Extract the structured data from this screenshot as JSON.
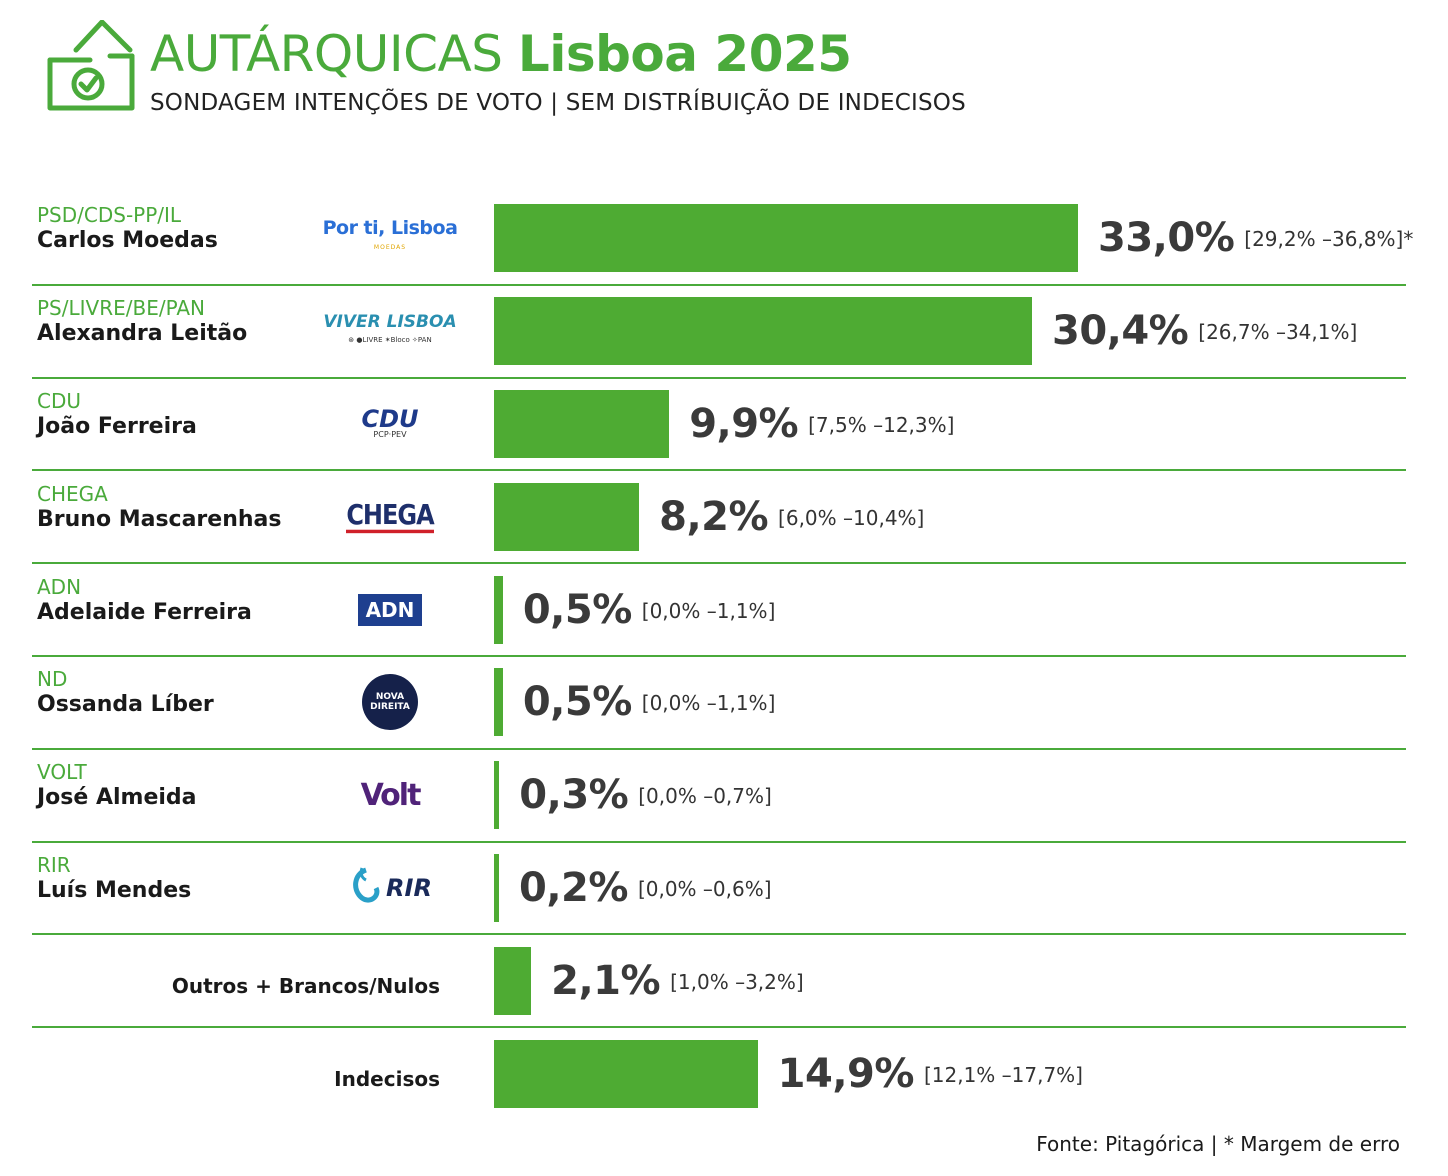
{
  "header": {
    "title_light": "AUTÁRQUICAS",
    "title_bold": "Lisboa 2025",
    "subtitle": "SONDAGEM INTENÇÕES DE VOTO | SEM DISTRÍBUIÇÃO DE INDECISOS"
  },
  "colors": {
    "accent": "#4aaa3b",
    "bar": "#4eab33",
    "value_text": "#3a3a3a"
  },
  "chart_data": {
    "type": "bar",
    "orientation": "horizontal",
    "unit": "%",
    "title": "AUTÁRQUICAS Lisboa 2025",
    "subtitle": "SONDAGEM INTENÇÕES DE VOTO | SEM DISTRÍBUIÇÃO DE INDECISOS",
    "xlim": [
      0,
      33
    ],
    "grid": false,
    "rows": [
      {
        "party": "PSD/CDS-PP/IL",
        "candidate": "Carlos Moedas",
        "logo": "Por ti, Lisboa",
        "logo_sub": "MOEDAS",
        "value": 33.0,
        "label": "33,0%",
        "ci": "[29,2% –36,8%]*"
      },
      {
        "party": "PS/LIVRE/BE/PAN",
        "candidate": "Alexandra Leitão",
        "logo": "VIVER LISBOA",
        "logo_sub": "⊛ ●LIVRE ✶Bloco ✧PAN",
        "value": 30.4,
        "label": "30,4%",
        "ci": "[26,7% –34,1%]"
      },
      {
        "party": "CDU",
        "candidate": "João Ferreira",
        "logo": "CDU",
        "logo_sub": "PCP·PEV",
        "value": 9.9,
        "label": "9,9%",
        "ci": "[7,5% –12,3%]"
      },
      {
        "party": "CHEGA",
        "candidate": "Bruno Mascarenhas",
        "logo": "CHEGA",
        "logo_sub": "",
        "value": 8.2,
        "label": "8,2%",
        "ci": "[6,0% –10,4%]"
      },
      {
        "party": "ADN",
        "candidate": "Adelaide Ferreira",
        "logo": "ADN",
        "logo_sub": "",
        "value": 0.5,
        "label": "0,5%",
        "ci": "[0,0% –1,1%]"
      },
      {
        "party": "ND",
        "candidate": "Ossanda Líber",
        "logo": "NOVA DIREITA",
        "logo_sub": "",
        "value": 0.5,
        "label": "0,5%",
        "ci": "[0,0% –1,1%]"
      },
      {
        "party": "VOLT",
        "candidate": "José Almeida",
        "logo": "Volt",
        "logo_sub": "",
        "value": 0.3,
        "label": "0,3%",
        "ci": "[0,0% –0,7%]"
      },
      {
        "party": "RIR",
        "candidate": "Luís Mendes",
        "logo": "RIR",
        "logo_sub": "",
        "value": 0.2,
        "label": "0,2%",
        "ci": "[0,0% –0,6%]"
      },
      {
        "label_only": "Outros + Brancos/Nulos",
        "value": 2.1,
        "label": "2,1%",
        "ci": "[1,0% –3,2%]"
      },
      {
        "label_only": "Indecisos",
        "value": 14.9,
        "label": "14,9%",
        "ci": "[12,1% –17,7%]"
      }
    ]
  },
  "footer": {
    "source": "Fonte: Pitagórica | * Margem de erro"
  }
}
